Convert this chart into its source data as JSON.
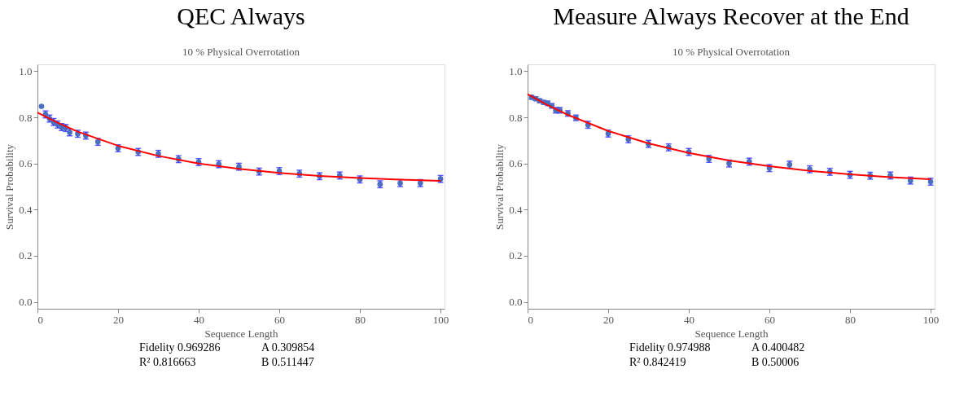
{
  "chart_data": [
    {
      "type": "scatter",
      "title": "QEC Always",
      "subtitle": "10 % Physical Overrotation",
      "xlabel": "Sequence Length",
      "ylabel": "Survival Probability",
      "xlim": [
        0,
        101
      ],
      "ylim": [
        -0.03,
        1.03
      ],
      "xticks": [
        0,
        20,
        40,
        60,
        80,
        100
      ],
      "yticks": [
        {
          "value": 0,
          "label": "0.0"
        },
        {
          "value": 0.2,
          "label": "0.2"
        },
        {
          "value": 0.4,
          "label": "0.4"
        },
        {
          "value": 0.6,
          "label": "0.6"
        },
        {
          "value": 0.8,
          "label": "0.8"
        },
        {
          "value": 1,
          "label": "1.0"
        }
      ],
      "grid": false,
      "series": [
        {
          "marker": "circle",
          "color": "#4a6fc0",
          "x": [
            1,
            2,
            3,
            4,
            5,
            6,
            7,
            8,
            10,
            12,
            15,
            20,
            25,
            30,
            35,
            40,
            45,
            50,
            55,
            60,
            65,
            70,
            75,
            80,
            85,
            90,
            95,
            100
          ],
          "values": [
            0.848,
            0.813,
            0.795,
            0.78,
            0.769,
            0.758,
            0.754,
            0.735,
            0.729,
            0.721,
            0.694,
            0.666,
            0.65,
            0.642,
            0.619,
            0.606,
            0.597,
            0.586,
            0.565,
            0.567,
            0.556,
            0.545,
            0.548,
            0.531,
            0.51,
            0.515,
            0.515,
            0.533
          ],
          "errors": [
            null,
            0.015,
            0.015,
            0.015,
            0.015,
            0.015,
            0.015,
            0.015,
            0.015,
            0.015,
            0.015,
            0.015,
            0.015,
            0.015,
            0.015,
            0.015,
            0.015,
            0.015,
            0.015,
            0.015,
            0.015,
            0.015,
            0.015,
            0.015,
            0.015,
            0.015,
            0.015,
            0.015
          ]
        },
        {
          "type": "line",
          "color": "#ff0000",
          "x": [
            0,
            5,
            10,
            20,
            30,
            40,
            50,
            60,
            70,
            80,
            90,
            100
          ],
          "values": [
            0.821,
            0.777,
            0.738,
            0.677,
            0.633,
            0.6,
            0.577,
            0.559,
            0.546,
            0.537,
            0.53,
            0.525
          ]
        }
      ],
      "annotations": [
        "Fidelity 0.969286",
        "A 0.309854",
        "R² 0.816663",
        "B 0.511447"
      ]
    },
    {
      "type": "scatter",
      "title": "Measure Always Recover at the End",
      "subtitle": "10 % Physical Overrotation",
      "xlabel": "Sequence Length",
      "ylabel": "Survival Probability",
      "xlim": [
        0,
        101
      ],
      "ylim": [
        -0.03,
        1.03
      ],
      "xticks": [
        0,
        20,
        40,
        60,
        80,
        100
      ],
      "yticks": [
        {
          "value": 0,
          "label": "0.0"
        },
        {
          "value": 0.2,
          "label": "0.2"
        },
        {
          "value": 0.4,
          "label": "0.4"
        },
        {
          "value": 0.6,
          "label": "0.6"
        },
        {
          "value": 0.8,
          "label": "0.8"
        },
        {
          "value": 1,
          "label": "1.0"
        }
      ],
      "grid": false,
      "series": [
        {
          "marker": "circle",
          "color": "#4a6fc0",
          "x": [
            1,
            2,
            3,
            4,
            5,
            6,
            7,
            8,
            10,
            12,
            15,
            20,
            25,
            30,
            35,
            40,
            45,
            50,
            55,
            60,
            65,
            70,
            75,
            80,
            85,
            90,
            95,
            100
          ],
          "values": [
            0.887,
            0.881,
            0.872,
            0.865,
            0.861,
            0.85,
            0.831,
            0.831,
            0.817,
            0.798,
            0.768,
            0.73,
            0.705,
            0.685,
            0.67,
            0.65,
            0.62,
            0.6,
            0.608,
            0.58,
            0.595,
            0.575,
            0.564,
            0.551,
            0.547,
            0.548,
            0.526,
            0.521
          ],
          "errors": [
            0.008,
            0.008,
            0.008,
            0.008,
            0.01,
            0.01,
            0.012,
            0.012,
            0.012,
            0.012,
            0.015,
            0.015,
            0.015,
            0.015,
            0.015,
            0.015,
            0.015,
            0.015,
            0.015,
            0.015,
            0.015,
            0.015,
            0.015,
            0.015,
            0.015,
            0.015,
            0.015,
            0.015
          ]
        },
        {
          "type": "line",
          "color": "#ff0000",
          "x": [
            0,
            5,
            10,
            20,
            30,
            40,
            50,
            60,
            70,
            80,
            90,
            100
          ],
          "values": [
            0.901,
            0.853,
            0.811,
            0.741,
            0.687,
            0.646,
            0.613,
            0.588,
            0.568,
            0.553,
            0.541,
            0.532
          ]
        }
      ],
      "annotations": [
        "Fidelity 0.974988",
        "A 0.400482",
        "R² 0.842419",
        "B 0.50006"
      ]
    }
  ]
}
